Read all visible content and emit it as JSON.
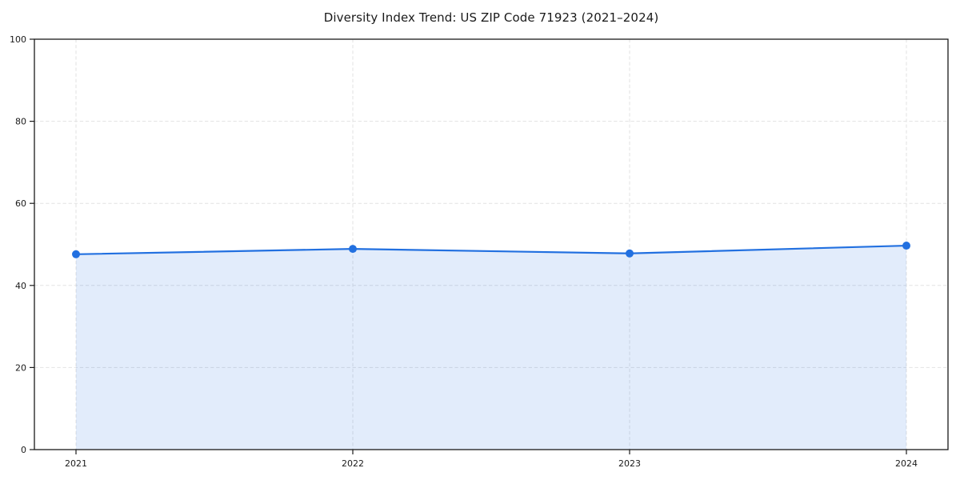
{
  "chart_data": {
    "type": "area",
    "title": "Diversity Index Trend: US ZIP Code 71923 (2021–2024)",
    "categories": [
      "2021",
      "2022",
      "2023",
      "2024"
    ],
    "series": [
      {
        "name": "Diversity Index",
        "values": [
          47.6,
          48.9,
          47.8,
          49.7
        ]
      }
    ],
    "xlabel": "",
    "ylabel": "",
    "ylim": [
      0,
      100
    ],
    "yticks": [
      0,
      20,
      40,
      60,
      80,
      100
    ],
    "grid": true,
    "grid_style": "dashed",
    "legend": "none",
    "colors": {
      "line": "#2270e0",
      "marker": "#2270e0",
      "fill": "#2270e0",
      "fill_opacity": 0.13,
      "grid": "#e2e2e2",
      "spine": "#1a1a1a",
      "text": "#1a1a1a",
      "background": "#ffffff"
    }
  }
}
